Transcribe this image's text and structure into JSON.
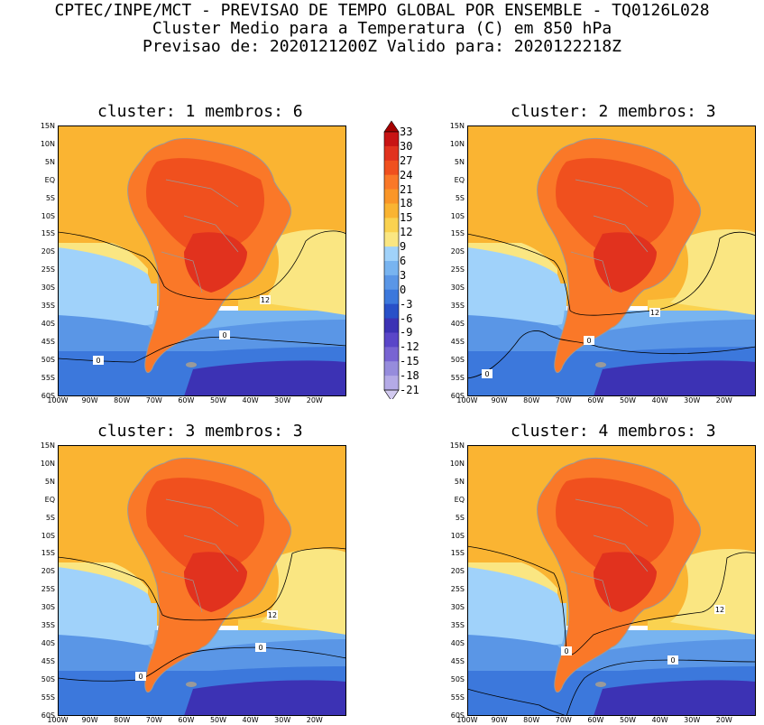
{
  "header": {
    "line1": "CPTEC/INPE/MCT - PREVISAO DE TEMPO GLOBAL POR ENSEMBLE - TQ0126L028",
    "line2": "Cluster Medio para a Temperatura (C) em 850 hPa",
    "line3": "Previsao de: 2020121200Z    Valido para: 2020122218Z"
  },
  "panels": [
    {
      "title": "cluster: 1   membros: 6"
    },
    {
      "title": "cluster: 2   membros: 3"
    },
    {
      "title": "cluster: 3   membros: 3"
    },
    {
      "title": "cluster: 4   membros: 3"
    }
  ],
  "axes": {
    "lat_labels": [
      "15N",
      "10N",
      "5N",
      "EQ",
      "5S",
      "10S",
      "15S",
      "20S",
      "25S",
      "30S",
      "35S",
      "40S",
      "45S",
      "50S",
      "55S",
      "60S"
    ],
    "lon_labels": [
      "100W",
      "90W",
      "80W",
      "70W",
      "60W",
      "50W",
      "40W",
      "30W",
      "20W"
    ]
  },
  "contour_labels": {
    "twelve": "12",
    "zero": "0"
  },
  "colorbar": {
    "levels": [
      "33",
      "30",
      "27",
      "24",
      "21",
      "18",
      "15",
      "12",
      "9",
      "6",
      "3",
      "0",
      "-3",
      "-6",
      "-9",
      "-12",
      "-15",
      "-18",
      "-21"
    ],
    "colors": [
      "#a50000",
      "#c81414",
      "#e1321e",
      "#f0501e",
      "#fa7828",
      "#fa9628",
      "#fab432",
      "#fad250",
      "#fae682",
      "#a0d2fa",
      "#78b4f0",
      "#5a96e6",
      "#3c78dc",
      "#2850c8",
      "#3c32b4",
      "#5a46c8",
      "#7864d2",
      "#968cdc",
      "#b4aae6",
      "#d2caf0"
    ]
  },
  "colors": {
    "land_outline": "#9a9a9a",
    "contour": "#000000"
  }
}
